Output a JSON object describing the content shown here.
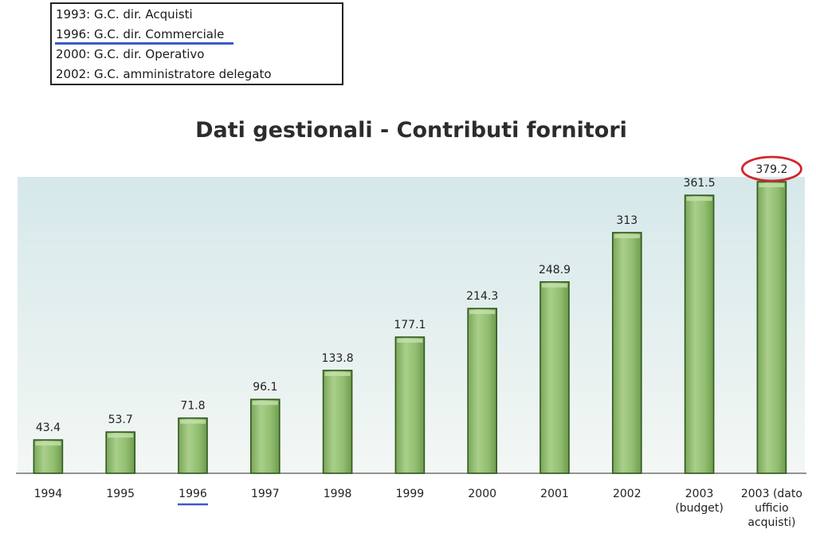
{
  "notes": {
    "lines": [
      "1993: G.C. dir. Acquisti",
      "1996: G.C. dir. Commerciale",
      "2000: G.C. dir. Operativo",
      "2002: G.C. amministratore delegato"
    ],
    "underline_color": "#3a5bc7"
  },
  "colors": {
    "plot_background": "#e4efef",
    "bar_fill": "#8fbc6c",
    "bar_border": "#2f5a1e",
    "bar_highlight": "#c6e0ad",
    "highlight_circle": "#d0262b",
    "highlight_underline": "#3a5bc7"
  },
  "chart_data": {
    "type": "bar",
    "title": "Dati gestionali - Contributi fornitori",
    "xlabel": "",
    "ylabel": "",
    "ylim": [
      0,
      400
    ],
    "grid": false,
    "categories": [
      [
        "1994"
      ],
      [
        "1995"
      ],
      [
        "1996"
      ],
      [
        "1997"
      ],
      [
        "1998"
      ],
      [
        "1999"
      ],
      [
        "2000"
      ],
      [
        "2001"
      ],
      [
        "2002"
      ],
      [
        "2003",
        "(budget)"
      ],
      [
        "2003 (dato",
        "ufficio",
        "acquisti)"
      ]
    ],
    "values": [
      43.4,
      53.7,
      71.8,
      96.1,
      133.8,
      177.1,
      214.3,
      248.9,
      313,
      361.5,
      379.2
    ],
    "value_labels": [
      "43.4",
      "53.7",
      "71.8",
      "96.1",
      "133.8",
      "177.1",
      "214.3",
      "248.9",
      "313",
      "361.5",
      "379.2"
    ],
    "annotations": {
      "circled_value": "379.2",
      "underlined_category": "1996"
    }
  }
}
